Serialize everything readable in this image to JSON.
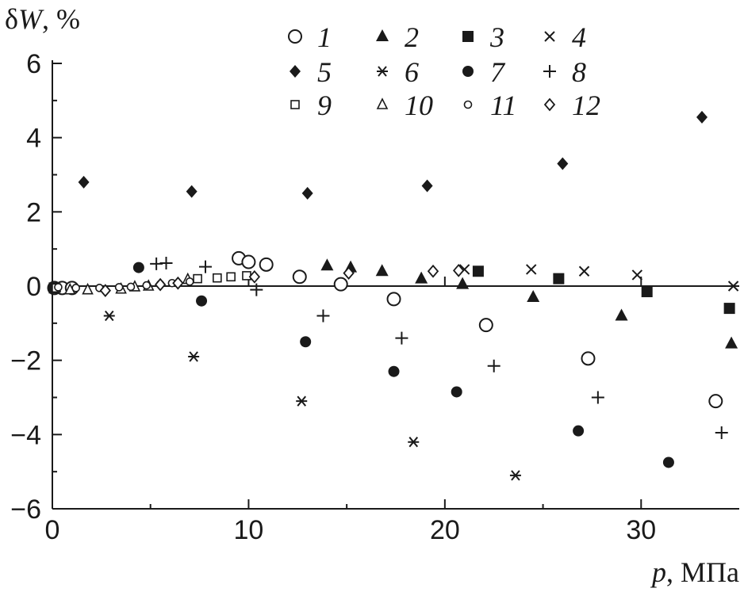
{
  "chart_data": {
    "type": "scatter",
    "title": "",
    "xlabel": {
      "symbol": "p",
      "unit": ", МПа"
    },
    "ylabel": {
      "symbol_prefix": "δ",
      "symbol": "W",
      "unit": ", %"
    },
    "xlim": [
      0,
      35
    ],
    "ylim": [
      -6,
      6
    ],
    "x_ticks": [
      0,
      10,
      20,
      30
    ],
    "y_ticks": [
      -6,
      -4,
      -2,
      0,
      2,
      4,
      6
    ],
    "x_tick_labels": [
      "0",
      "10",
      "20",
      "30"
    ],
    "y_tick_labels": [
      "−6",
      "−4",
      "−2",
      "0",
      "2",
      "4",
      "6"
    ],
    "grid": false,
    "legend_position": "top-right",
    "series": [
      {
        "name": "1",
        "marker": "open-circle",
        "x": [
          0.1,
          0.5,
          1.0,
          9.5,
          10.0,
          10.9,
          12.6,
          14.7,
          17.4,
          22.1,
          27.3,
          33.8
        ],
        "y": [
          -0.05,
          -0.05,
          -0.05,
          0.75,
          0.65,
          0.58,
          0.25,
          0.05,
          -0.35,
          -1.05,
          -1.95,
          -3.1
        ]
      },
      {
        "name": "2",
        "marker": "filled-triangle",
        "x": [
          14.0,
          15.2,
          16.8,
          18.8,
          20.9,
          24.5,
          29.0,
          34.6
        ],
        "y": [
          0.55,
          0.5,
          0.4,
          0.2,
          0.05,
          -0.3,
          -0.8,
          -1.55
        ]
      },
      {
        "name": "3",
        "marker": "filled-square",
        "x": [
          0.1,
          21.7,
          25.8,
          30.3,
          34.5
        ],
        "y": [
          -0.05,
          0.4,
          0.2,
          -0.15,
          -0.6
        ]
      },
      {
        "name": "4",
        "marker": "x-cross",
        "x": [
          21.0,
          24.4,
          27.1,
          29.8,
          34.7
        ],
        "y": [
          0.45,
          0.45,
          0.4,
          0.3,
          0.0
        ]
      },
      {
        "name": "5",
        "marker": "filled-diamond",
        "x": [
          1.6,
          7.1,
          13.0,
          19.1,
          26.0,
          33.1
        ],
        "y": [
          2.8,
          2.55,
          2.5,
          2.7,
          3.3,
          4.55
        ]
      },
      {
        "name": "6",
        "marker": "asterisk",
        "x": [
          2.9,
          7.2,
          12.7,
          18.4,
          23.6
        ],
        "y": [
          -0.8,
          -1.9,
          -3.1,
          -4.2,
          -5.1
        ]
      },
      {
        "name": "7",
        "marker": "filled-circle",
        "x": [
          4.4,
          7.6,
          12.9,
          17.4,
          20.6,
          26.8,
          31.4
        ],
        "y": [
          0.5,
          -0.4,
          -1.5,
          -2.3,
          -2.85,
          -3.9,
          -4.75
        ]
      },
      {
        "name": "8",
        "marker": "plus",
        "x": [
          5.3,
          5.8,
          7.8,
          10.4,
          13.8,
          17.8,
          22.5,
          27.8,
          34.1
        ],
        "y": [
          0.6,
          0.62,
          0.52,
          -0.1,
          -0.8,
          -1.4,
          -2.15,
          -3.0,
          -3.95
        ]
      },
      {
        "name": "9",
        "marker": "open-square",
        "x": [
          0.2,
          7.4,
          8.4,
          9.1,
          9.9
        ],
        "y": [
          -0.05,
          0.2,
          0.22,
          0.25,
          0.28
        ]
      },
      {
        "name": "10",
        "marker": "open-triangle",
        "x": [
          0.9,
          1.8,
          3.5,
          4.2,
          4.9,
          6.9
        ],
        "y": [
          -0.1,
          -0.1,
          -0.08,
          -0.02,
          0.0,
          0.18
        ]
      },
      {
        "name": "11",
        "marker": "small-open-circle",
        "x": [
          0.3,
          1.2,
          2.4,
          3.4,
          4.0,
          4.8,
          5.5,
          6.1,
          7.0
        ],
        "y": [
          -0.03,
          -0.05,
          -0.05,
          -0.03,
          -0.02,
          0.02,
          0.05,
          0.08,
          0.12
        ]
      },
      {
        "name": "12",
        "marker": "open-diamond",
        "x": [
          2.7,
          5.5,
          6.4,
          10.3,
          15.1,
          19.4,
          20.7
        ],
        "y": [
          -0.12,
          0.04,
          0.08,
          0.25,
          0.35,
          0.4,
          0.42
        ]
      }
    ]
  },
  "colors": {
    "ink": "#1a1a1a",
    "background": "#ffffff"
  }
}
